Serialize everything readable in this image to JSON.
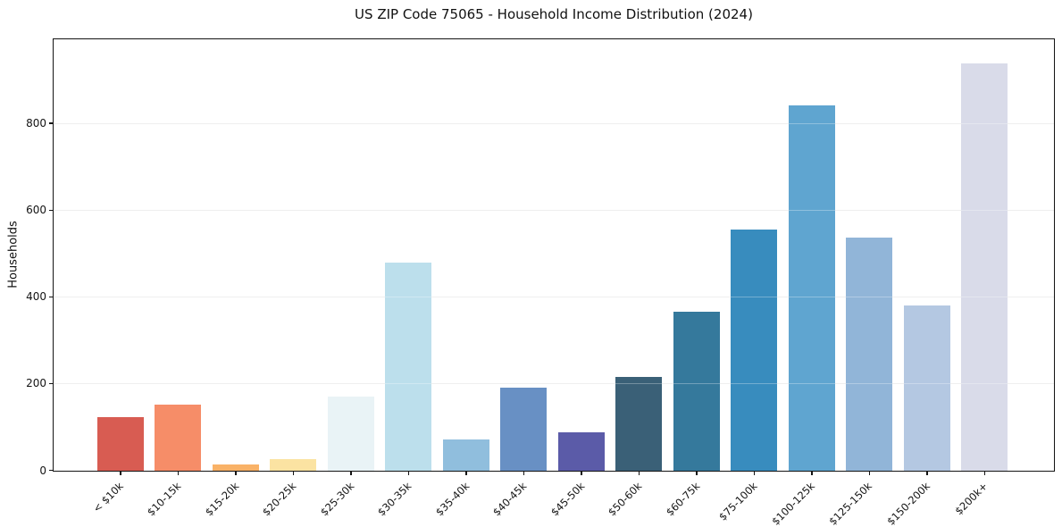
{
  "chart_data": {
    "type": "bar",
    "title": "US ZIP Code 75065 - Household Income Distribution (2024)",
    "xlabel": "",
    "ylabel": "Households",
    "categories": [
      "< $10k",
      "$10-15k",
      "$15-20k",
      "$20-25k",
      "$25-30k",
      "$30-35k",
      "$35-40k",
      "$40-45k",
      "$45-50k",
      "$50-60k",
      "$60-75k",
      "$75-100k",
      "$100-125k",
      "$125-150k",
      "$150-200k",
      "$200k+"
    ],
    "values": [
      124,
      152,
      15,
      27,
      170,
      481,
      72,
      192,
      88,
      216,
      366,
      556,
      843,
      538,
      381,
      940
    ],
    "bar_colors": [
      "#d85c52",
      "#f68d68",
      "#f9b267",
      "#fbe3a2",
      "#e9f3f6",
      "#bcdfec",
      "#90bedd",
      "#6890c4",
      "#5b5ba8",
      "#3a6077",
      "#35799c",
      "#388cbe",
      "#5fa5d0",
      "#91b5d8",
      "#b4c8e2",
      "#d9dbe9"
    ],
    "ylim": [
      0,
      993
    ],
    "yticks": [
      0,
      200,
      400,
      600,
      800
    ],
    "grid": true,
    "legend_position": "none",
    "background_color": "#ffffff",
    "axis_color": "#131313",
    "gridline_color": "#e8e8e8"
  }
}
